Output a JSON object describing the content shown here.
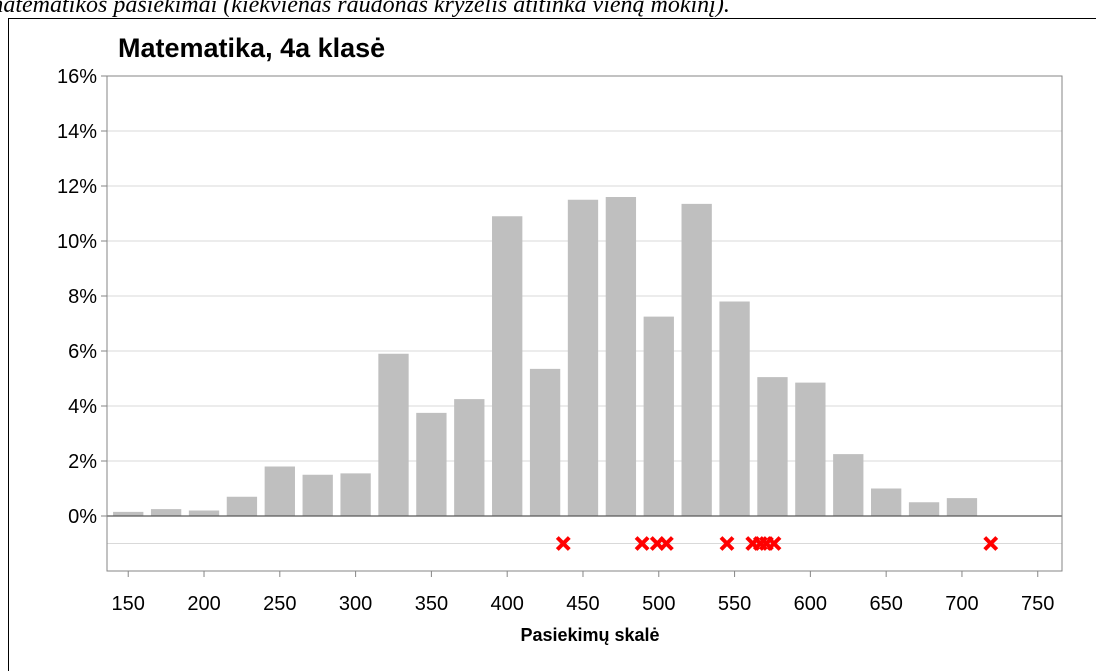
{
  "caption": "matematikos pasiekimai (kiekvienas raudonas kryželis atitinka vieną mokinį).",
  "chart_data": {
    "type": "histogram",
    "title": "Matematika, 4a klasė",
    "x_label": "Pasiekimų skalė",
    "bins": [
      137.5,
      162.5,
      187.5,
      212.5,
      237.5,
      262.5,
      287.5,
      312.5,
      337.5,
      362.5,
      387.5,
      412.5,
      437.5,
      462.5,
      487.5,
      512.5,
      537.5,
      562.5,
      587.5,
      612.5,
      637.5,
      662.5,
      687.5,
      712.5
    ],
    "values": [
      0.15,
      0.25,
      0.2,
      0.7,
      1.8,
      1.5,
      1.55,
      5.9,
      3.75,
      4.25,
      10.9,
      5.35,
      11.5,
      11.6,
      7.25,
      11.35,
      7.8,
      5.05,
      4.85,
      2.25,
      1.0,
      0.5,
      0.65
    ],
    "color": "#bfbfbf",
    "crosses": {
      "color": "#ff0000",
      "x": [
        437,
        489,
        499,
        505,
        545,
        562,
        567,
        571,
        576,
        719
      ],
      "values": [
        -1,
        -1,
        -1,
        -1,
        -1,
        -1,
        -1,
        -1,
        -1,
        -1
      ]
    },
    "xlim": [
      136,
      766
    ],
    "xticks": [
      150,
      200,
      250,
      300,
      350,
      400,
      450,
      500,
      550,
      600,
      650,
      700,
      750
    ],
    "ylim": [
      -2,
      16
    ],
    "yticks": [
      {
        "value": 0,
        "label": "0%"
      },
      {
        "value": 2,
        "label": "2%"
      },
      {
        "value": 4,
        "label": "4%"
      },
      {
        "value": 6,
        "label": "6%"
      },
      {
        "value": 8,
        "label": "8%"
      },
      {
        "value": 10,
        "label": "10%"
      },
      {
        "value": 12,
        "label": "12%"
      },
      {
        "value": 14,
        "label": "14%"
      },
      {
        "value": 16,
        "label": "16%"
      }
    ],
    "grid": true
  }
}
